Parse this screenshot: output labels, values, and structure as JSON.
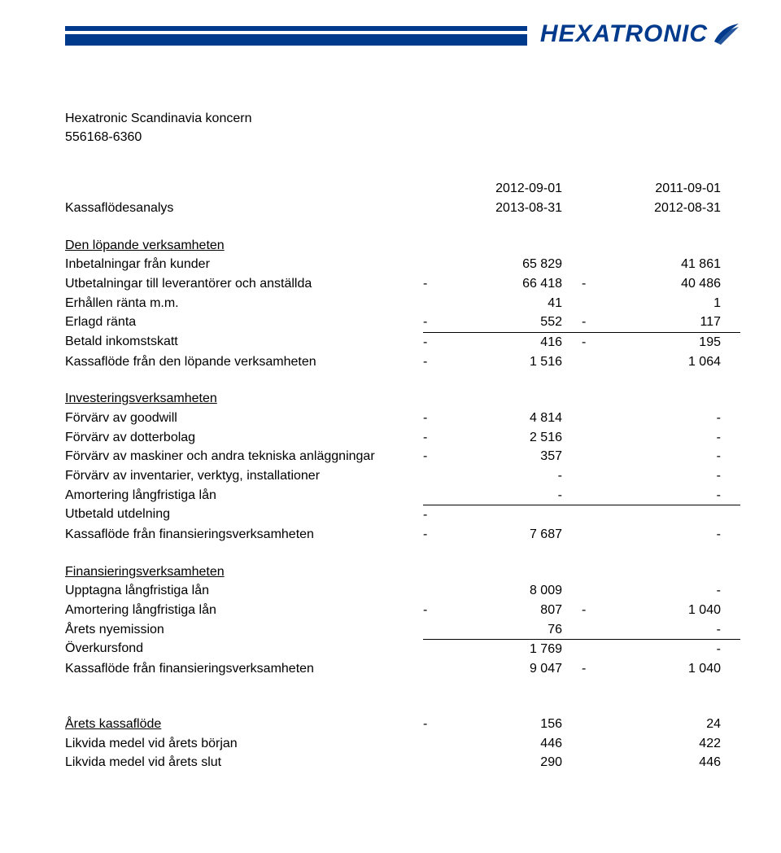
{
  "brand": {
    "name": "HEXATRONIC",
    "color": "#003a8c"
  },
  "company": {
    "line1": "Hexatronic Scandinavia  koncern",
    "line2": "556168-6360"
  },
  "periods": {
    "heading": "Kassaflödesanalys",
    "p1_from": "2012-09-01",
    "p1_to": "2013-08-31",
    "p2_from": "2011-09-01",
    "p2_to": "2012-08-31"
  },
  "sections": {
    "operating": {
      "title": "Den löpande verksamheten",
      "rows": [
        {
          "label": "Inbetalningar från kunder",
          "s1": "",
          "v1": "65 829",
          "s2": "",
          "v2": "41 861"
        },
        {
          "label": "Utbetalningar till leverantörer och anställda",
          "s1": "-",
          "v1": "66 418",
          "s2": "-",
          "v2": "40 486"
        },
        {
          "label": "Erhållen ränta m.m.",
          "s1": "",
          "v1": "41",
          "s2": "",
          "v2": "1"
        },
        {
          "label": "Erlagd ränta",
          "s1": "-",
          "v1": "552",
          "s2": "-",
          "v2": "117"
        },
        {
          "label": "Betald inkomstskatt",
          "s1": "-",
          "v1": "416",
          "s2": "-",
          "v2": "195",
          "sumline": true
        }
      ],
      "total": {
        "label": "Kassaflöde från den löpande verksamheten",
        "s1": "-",
        "v1": "1 516",
        "s2": "",
        "v2": "1 064"
      }
    },
    "investing": {
      "title": "Investeringsverksamheten",
      "rows": [
        {
          "label": "Förvärv av goodwill",
          "s1": "-",
          "v1": "4 814",
          "s2": "",
          "v2": "-"
        },
        {
          "label": "Förvärv av dotterbolag",
          "s1": "-",
          "v1": "2 516",
          "s2": "",
          "v2": "-"
        },
        {
          "label": "Förvärv av maskiner och andra tekniska anläggningar",
          "s1": "-",
          "v1": "357",
          "s2": "",
          "v2": "-"
        },
        {
          "label": "Förvärv av inventarier, verktyg, installationer",
          "s1": "",
          "v1": "-",
          "s2": "",
          "v2": "-"
        },
        {
          "label": "Amortering långfristiga lån",
          "s1": "",
          "v1": "-",
          "s2": "",
          "v2": "-"
        },
        {
          "label": "Utbetald utdelning",
          "s1": "-",
          "v1": "",
          "s2": "",
          "v2": "",
          "sumline": true
        }
      ],
      "total": {
        "label": "Kassaflöde från finansieringsverksamheten",
        "s1": "-",
        "v1": "7 687",
        "s2": "",
        "v2": "-"
      }
    },
    "financing": {
      "title": "Finansieringsverksamheten",
      "rows": [
        {
          "label": "Upptagna långfristiga lån",
          "s1": "",
          "v1": "8 009",
          "s2": "",
          "v2": "-"
        },
        {
          "label": "Amortering långfristiga lån",
          "s1": "-",
          "v1": "807",
          "s2": "-",
          "v2": "1 040"
        },
        {
          "label": "Årets nyemission",
          "s1": "",
          "v1": "76",
          "s2": "",
          "v2": "-"
        },
        {
          "label": "Överkursfond",
          "s1": "",
          "v1": "1 769",
          "s2": "",
          "v2": "-",
          "sumline": true
        }
      ],
      "total": {
        "label": "Kassaflöde från finansieringsverksamheten",
        "s1": "",
        "v1": "9 047",
        "s2": "-",
        "v2": "1 040"
      }
    },
    "summary": {
      "rows": [
        {
          "label": "Årets kassaflöde",
          "s1": "-",
          "v1": "156",
          "s2": "",
          "v2": "24",
          "underline": true
        },
        {
          "label": "Likvida medel vid årets början",
          "s1": "",
          "v1": "446",
          "s2": "",
          "v2": "422"
        },
        {
          "label": "Likvida medel vid årets slut",
          "s1": "",
          "v1": "290",
          "s2": "",
          "v2": "446"
        }
      ]
    }
  }
}
